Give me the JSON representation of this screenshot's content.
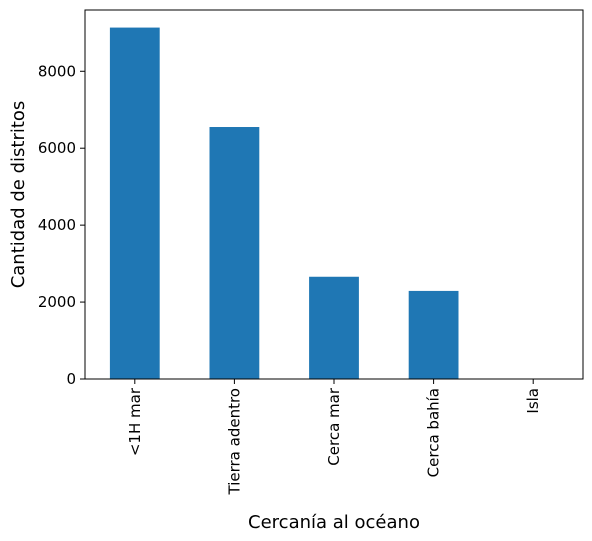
{
  "chart_data": {
    "type": "bar",
    "title": "",
    "xlabel": "Cercanía al océano",
    "ylabel": "Cantidad de distritos",
    "categories": [
      "<1H mar",
      "Tierra adentro",
      "Cerca mar",
      "Cerca bahía",
      "Isla"
    ],
    "values": [
      9136,
      6551,
      2658,
      2290,
      5
    ],
    "ylim": [
      0,
      9593
    ],
    "yticks": [
      0,
      2000,
      4000,
      6000,
      8000
    ],
    "ytick_labels": [
      "0",
      "2000",
      "4000",
      "6000",
      "8000"
    ],
    "grid": false,
    "legend": "none",
    "bar_color": "#1f77b4"
  }
}
